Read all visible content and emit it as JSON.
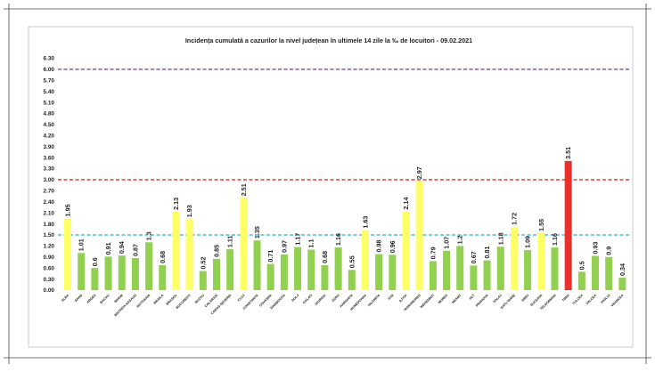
{
  "chart_data": {
    "type": "bar",
    "title": "Incidența cumulată a cazurilor la nivel județean în ultimele 14 zile    la ‰ de locuitori  - 09.02.2021",
    "xlabel": "",
    "ylabel": "",
    "ylim": [
      0,
      6.3
    ],
    "ytick_labels": [
      "0.00",
      "0.30",
      "0.60",
      "0.90",
      "1.20",
      "1.50",
      "1.80",
      "2.10",
      "2.40",
      "2.70",
      "3.00",
      "3.30",
      "3.60",
      "3.90",
      "4.20",
      "4.50",
      "4.80",
      "5.10",
      "5.40",
      "5.70",
      "6.00",
      "6.30"
    ],
    "grid": false,
    "legend": "none",
    "reference_lines": [
      {
        "value": 6.0,
        "color": "#7030a0",
        "style": "dashed"
      },
      {
        "value": 3.0,
        "color": "#e0302a",
        "style": "dashed"
      },
      {
        "value": 1.5,
        "color": "#1fb3d1",
        "style": "dashed"
      }
    ],
    "colors": {
      "low": "#92d050",
      "medium": "#ffff66",
      "high": "#e8312a"
    },
    "categories": [
      "ALBA",
      "ARAD",
      "ARGES",
      "BACAU",
      "BIHOR",
      "BISTRITA NASAUD",
      "BOTOSANI",
      "BRAILA",
      "BRASOV",
      "BUCURESTI",
      "BUZAU",
      "CALARASI",
      "CARAS-SEVERIN",
      "CLUJ",
      "CONSTANTA",
      "COVASNA",
      "DAMBOVITA",
      "DOLJ",
      "GALATI",
      "GIURGIU",
      "GORJ",
      "HARGHITA",
      "HUNEDOARA",
      "IALOMITA",
      "IASI",
      "ILFOV",
      "MARAMURES",
      "MEHEDINTI",
      "MURES",
      "NEAMT",
      "OLT",
      "PRAHOVA",
      "SALAJ",
      "SATU MARE",
      "SIBIU",
      "SUCEAVA",
      "TELEORMAN",
      "TIMIS",
      "TULCEA",
      "VALCEA",
      "VASLUI",
      "VRANCEA"
    ],
    "values": [
      1.95,
      1.01,
      0.6,
      0.91,
      0.94,
      0.87,
      1.3,
      0.68,
      2.13,
      1.93,
      0.52,
      0.85,
      1.11,
      2.51,
      1.35,
      0.71,
      0.97,
      1.17,
      1.1,
      0.68,
      1.16,
      0.55,
      1.63,
      0.98,
      0.96,
      2.14,
      2.97,
      0.79,
      1.07,
      1.2,
      0.67,
      0.81,
      1.18,
      1.72,
      1.09,
      1.55,
      1.16,
      3.51,
      0.5,
      0.93,
      0.9,
      0.34
    ],
    "value_labels": [
      "1.95",
      "1.01",
      "0.6",
      "0.91",
      "0.94",
      "0.87",
      "1.3",
      "0.68",
      "2.13",
      "1.93",
      "0.52",
      "0.85",
      "1.11",
      "2.51",
      "1.35",
      "0.71",
      "0.97",
      "1.17",
      "1.1",
      "0.68",
      "1.16",
      "0.55",
      "1.63",
      "0.98",
      "0.96",
      "2.14",
      "2.97",
      "0.79",
      "1.07",
      "1.2",
      "0.67",
      "0.81",
      "1.18",
      "1.72",
      "1.09",
      "1.55",
      "1.16",
      "3.51",
      "0.5",
      "0.93",
      "0.9",
      "0.34"
    ],
    "bar_colors": [
      "medium",
      "low",
      "low",
      "low",
      "low",
      "low",
      "low",
      "low",
      "medium",
      "medium",
      "low",
      "low",
      "low",
      "medium",
      "low",
      "low",
      "low",
      "low",
      "low",
      "low",
      "low",
      "low",
      "medium",
      "low",
      "low",
      "medium",
      "medium",
      "low",
      "low",
      "low",
      "low",
      "low",
      "low",
      "medium",
      "low",
      "medium",
      "low",
      "high",
      "low",
      "low",
      "low",
      "low"
    ]
  }
}
